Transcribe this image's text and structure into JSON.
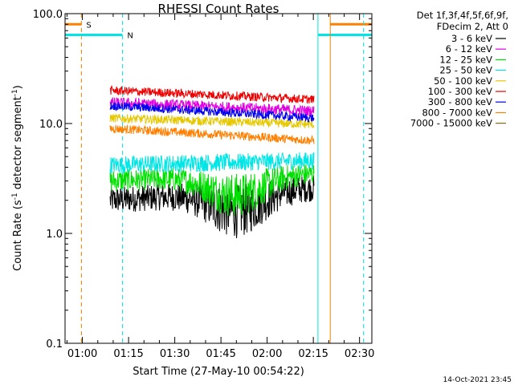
{
  "chart_data": {
    "type": "line",
    "title": "RHESSI Count Rates",
    "xlabel": "Start Time (27-May-10 00:54:22)",
    "ylabel_main": "Count Rate (s",
    "ylabel_sup1": "-1",
    "ylabel_mid": " detector segment",
    "ylabel_sup2": "-1",
    "ylabel_end": ")",
    "timestamp": "14-Oct-2021 23:45",
    "y_scale": "log",
    "ylim": [
      0.1,
      100.0
    ],
    "x_range_minutes": [
      54.37,
      154.0
    ],
    "x_ticks": [
      {
        "t": 60,
        "label": "01:00"
      },
      {
        "t": 75,
        "label": "01:15"
      },
      {
        "t": 90,
        "label": "01:30"
      },
      {
        "t": 105,
        "label": "01:45"
      },
      {
        "t": 120,
        "label": "02:00"
      },
      {
        "t": 135,
        "label": "02:15"
      },
      {
        "t": 150,
        "label": "02:30"
      }
    ],
    "y_ticks": [
      {
        "v": 0.1,
        "label": "0.1"
      },
      {
        "v": 1.0,
        "label": "1.0"
      },
      {
        "v": 10.0,
        "label": "10.0"
      },
      {
        "v": 100.0,
        "label": "100.0"
      }
    ],
    "legend_header": [
      "Det 1f,3f,4f,5f,6f,9f,",
      "FDecim 2, Att 0"
    ],
    "series": [
      {
        "name": "3 - 6 keV",
        "color": "#000000",
        "start": 2.0,
        "end": 2.6,
        "noise": 0.12
      },
      {
        "name": "6 - 12 keV",
        "color": "#e000e0",
        "start": 15.5,
        "end": 13.0,
        "noise": 0.05
      },
      {
        "name": "12 - 25 keV",
        "color": "#00e000",
        "start": 3.0,
        "end": 3.5,
        "noise": 0.1
      },
      {
        "name": "25 - 50 keV",
        "color": "#00e5e5",
        "start": 4.2,
        "end": 4.6,
        "noise": 0.08
      },
      {
        "name": "50 - 100 keV",
        "color": "#e5c800",
        "start": 11.2,
        "end": 9.8,
        "noise": 0.04
      },
      {
        "name": "100 - 300 keV",
        "color": "#ee0000",
        "start": 20.0,
        "end": 16.5,
        "noise": 0.04
      },
      {
        "name": "300 - 800 keV",
        "color": "#0000ee",
        "start": 14.5,
        "end": 11.2,
        "noise": 0.04
      },
      {
        "name": "800 - 7000 keV",
        "color": "#ff8000",
        "start": 9.0,
        "end": 7.0,
        "noise": 0.04
      },
      {
        "name": "7000 - 15000 keV",
        "color": "#8b6914",
        "start": 0.0,
        "end": 0.0,
        "noise": 0.0
      }
    ],
    "data_interval_minutes": [
      69.0,
      135.2
    ],
    "markers": [
      {
        "label": "S",
        "color": "#ff8000",
        "style": "dashed",
        "t": 59.7,
        "bar": [
          54.37,
          59.7
        ],
        "bar_level": 80.0
      },
      {
        "label": "N",
        "color": "#00e5e5",
        "style": "dashed",
        "t": 73.0,
        "bar": [
          54.37,
          73.0
        ],
        "bar_level": 64.0
      },
      {
        "label": "",
        "color": "#00e5e5",
        "style": "solid",
        "t": 136.5,
        "bar": [
          136.5,
          154.0
        ],
        "bar_level": 64.0
      },
      {
        "label": "",
        "color": "#ff8000",
        "style": "solid",
        "t": 140.5,
        "bar": [
          140.5,
          154.0
        ],
        "bar_level": 80.0
      },
      {
        "label": "",
        "color": "#00e5e5",
        "style": "dashed",
        "t": 151.3,
        "bar": null,
        "bar_level": null
      }
    ]
  }
}
